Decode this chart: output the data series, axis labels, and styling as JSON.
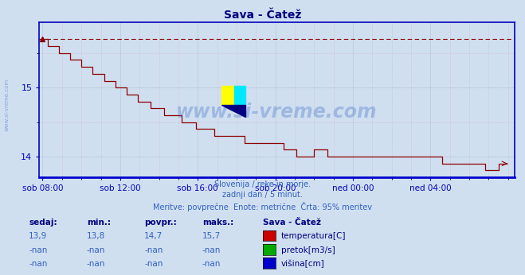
{
  "title": "Sava - Čatež",
  "title_color": "#000080",
  "bg_color": "#d0dff0",
  "plot_bg_color": "#d0dff0",
  "line_color": "#8b0000",
  "dashed_line_color": "#8b0000",
  "axis_color": "#0000bb",
  "grid_color_major": "#b8c8d8",
  "grid_color_minor_x": "#e8b0b0",
  "grid_color_minor_y": "#e8b0b0",
  "watermark": "www.si-vreme.com",
  "watermark_color": "#3060c0",
  "watermark_alpha": 0.3,
  "subtitle_lines": [
    "Slovenija / reke in morje.",
    "zadnji dan / 5 minut.",
    "Meritve: povprečne  Enote: metrične  Črta: 95% meritev"
  ],
  "subtitle_color": "#3060c0",
  "ylim": [
    13.7,
    15.95
  ],
  "yticks": [
    14.0,
    15.0
  ],
  "dashed_y": 15.7,
  "xtick_labels": [
    "sob 08:00",
    "sob 12:00",
    "sob 16:00",
    "sob 20:00",
    "ned 00:00",
    "ned 04:00"
  ],
  "xtick_positions": [
    0,
    48,
    96,
    144,
    192,
    240
  ],
  "total_points": 288,
  "table_headers": [
    "sedaj:",
    "min.:",
    "povpr.:",
    "maks.:",
    "Sava - Čatež"
  ],
  "table_header_color": "#000080",
  "table_rows": [
    [
      "13,9",
      "13,8",
      "14,7",
      "15,7",
      "temperatura[C]",
      "#cc0000"
    ],
    [
      "-nan",
      "-nan",
      "-nan",
      "-nan",
      "pretok[m3/s]",
      "#00aa00"
    ],
    [
      "-nan",
      "-nan",
      "-nan",
      "-nan",
      "višina[cm]",
      "#0000cc"
    ]
  ],
  "table_value_color": "#3060c0",
  "side_label": "www.si-vreme.com",
  "side_label_color": "#3060c0",
  "side_label_alpha": 0.45
}
